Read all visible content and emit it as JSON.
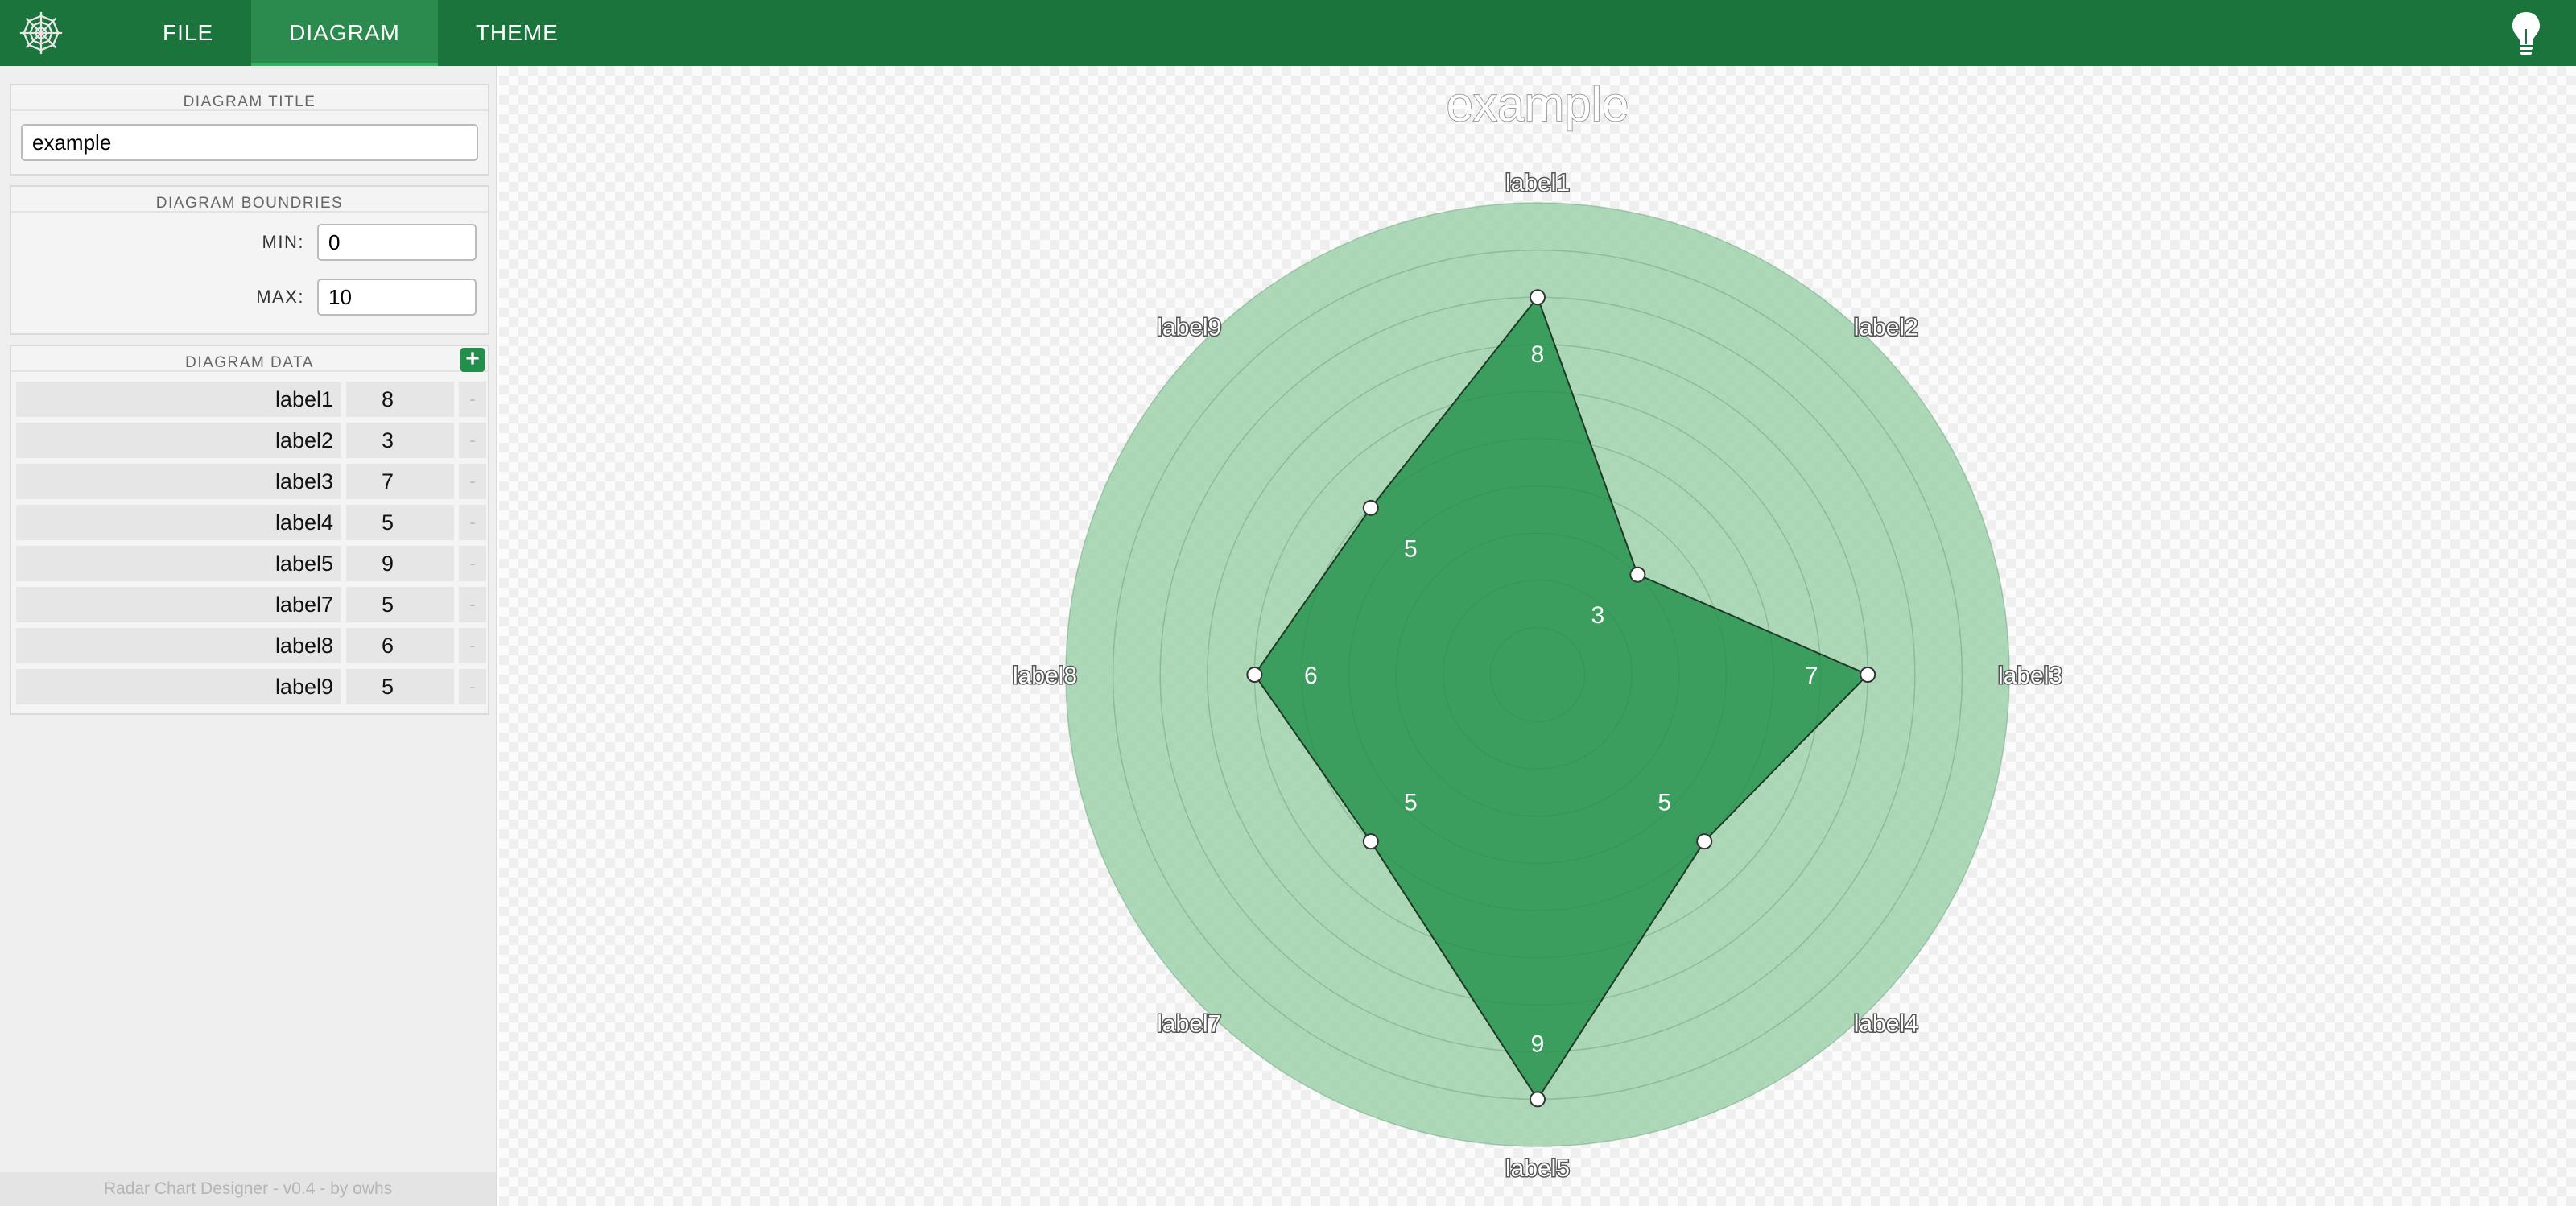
{
  "app": {
    "menu": [
      {
        "label": "FILE",
        "active": false
      },
      {
        "label": "DIAGRAM",
        "active": true
      },
      {
        "label": "THEME",
        "active": false
      }
    ],
    "footer": "Radar Chart Designer - v0.4 - by owhs"
  },
  "sidebar": {
    "title_panel": {
      "heading": "DIAGRAM TITLE",
      "value": "example"
    },
    "bounds_panel": {
      "heading": "DIAGRAM BOUNDRIES",
      "min_label": "MIN:",
      "min_value": "0",
      "max_label": "MAX:",
      "max_value": "10"
    },
    "data_panel": {
      "heading": "DIAGRAM DATA",
      "add_symbol": "+",
      "remove_symbol": "-",
      "rows": [
        {
          "label": "label1",
          "value": "8"
        },
        {
          "label": "label2",
          "value": "3"
        },
        {
          "label": "label3",
          "value": "7"
        },
        {
          "label": "label4",
          "value": "5"
        },
        {
          "label": "label5",
          "value": "9"
        },
        {
          "label": "label7",
          "value": "5"
        },
        {
          "label": "label8",
          "value": "6"
        },
        {
          "label": "label9",
          "value": "5"
        }
      ]
    }
  },
  "chart_data": {
    "type": "radar",
    "title": "example",
    "categories": [
      "label1",
      "label2",
      "label3",
      "label4",
      "label5",
      "label7",
      "label8",
      "label9"
    ],
    "values": [
      8,
      3,
      7,
      5,
      9,
      5,
      6,
      5
    ],
    "range": [
      0,
      10
    ],
    "grid_rings": 10,
    "colors": {
      "fill": "#22904a",
      "ring_fill": "#8fcca0",
      "stroke": "#1f3a25",
      "point_fill": "#ffffff"
    }
  }
}
